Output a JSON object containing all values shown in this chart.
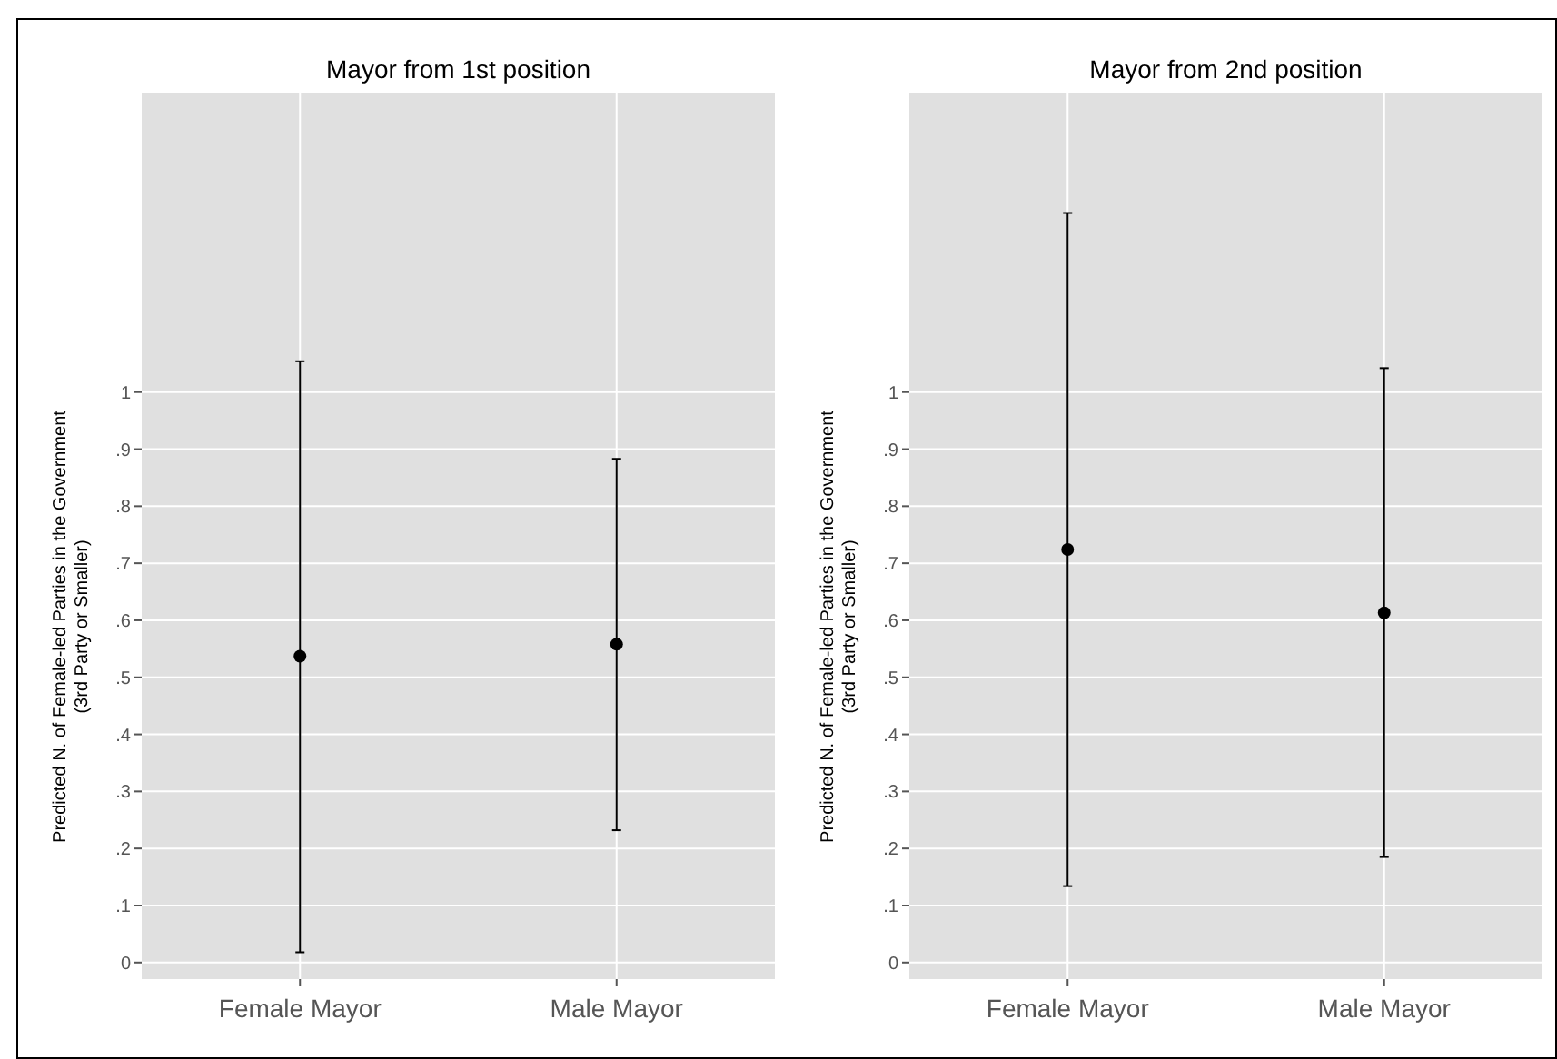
{
  "chart_data": [
    {
      "type": "scatter",
      "title": "Mayor from 1st position",
      "ylabel": "Predicted N. of Female-led Parties in the Government\n(3rd Party or Smaller)",
      "categories": [
        "Female Mayor",
        "Male Mayor"
      ],
      "values": [
        0.537,
        0.558
      ],
      "errors": [
        [
          0.018,
          1.054
        ],
        [
          0.232,
          0.883
        ]
      ],
      "color": "#000000",
      "marker": "circle",
      "grid": true,
      "ylim": [
        -0.029,
        1.525
      ],
      "yticks": [
        {
          "value": 0,
          "label": "0"
        },
        {
          "value": 0.1,
          "label": ".1"
        },
        {
          "value": 0.2,
          "label": ".2"
        },
        {
          "value": 0.3,
          "label": ".3"
        },
        {
          "value": 0.4,
          "label": ".4"
        },
        {
          "value": 0.5,
          "label": ".5"
        },
        {
          "value": 0.6,
          "label": ".6"
        },
        {
          "value": 0.7,
          "label": ".7"
        },
        {
          "value": 0.8,
          "label": ".8"
        },
        {
          "value": 0.9,
          "label": ".9"
        },
        {
          "value": 1,
          "label": "1"
        }
      ]
    },
    {
      "type": "scatter",
      "title": "Mayor from 2nd position",
      "ylabel": "Predicted N. of Female-led Parties in the Government\n(3rd Party or Smaller)",
      "categories": [
        "Female Mayor",
        "Male Mayor"
      ],
      "values": [
        0.724,
        0.613
      ],
      "errors": [
        [
          0.134,
          1.314
        ],
        [
          0.185,
          1.042
        ]
      ],
      "color": "#000000",
      "marker": "circle",
      "grid": true,
      "ylim": [
        -0.029,
        1.525
      ],
      "yticks": [
        {
          "value": 0,
          "label": "0"
        },
        {
          "value": 0.1,
          "label": ".1"
        },
        {
          "value": 0.2,
          "label": ".2"
        },
        {
          "value": 0.3,
          "label": ".3"
        },
        {
          "value": 0.4,
          "label": ".4"
        },
        {
          "value": 0.5,
          "label": ".5"
        },
        {
          "value": 0.6,
          "label": ".6"
        },
        {
          "value": 0.7,
          "label": ".7"
        },
        {
          "value": 0.8,
          "label": ".8"
        },
        {
          "value": 0.9,
          "label": ".9"
        },
        {
          "value": 1,
          "label": "1"
        }
      ]
    }
  ]
}
